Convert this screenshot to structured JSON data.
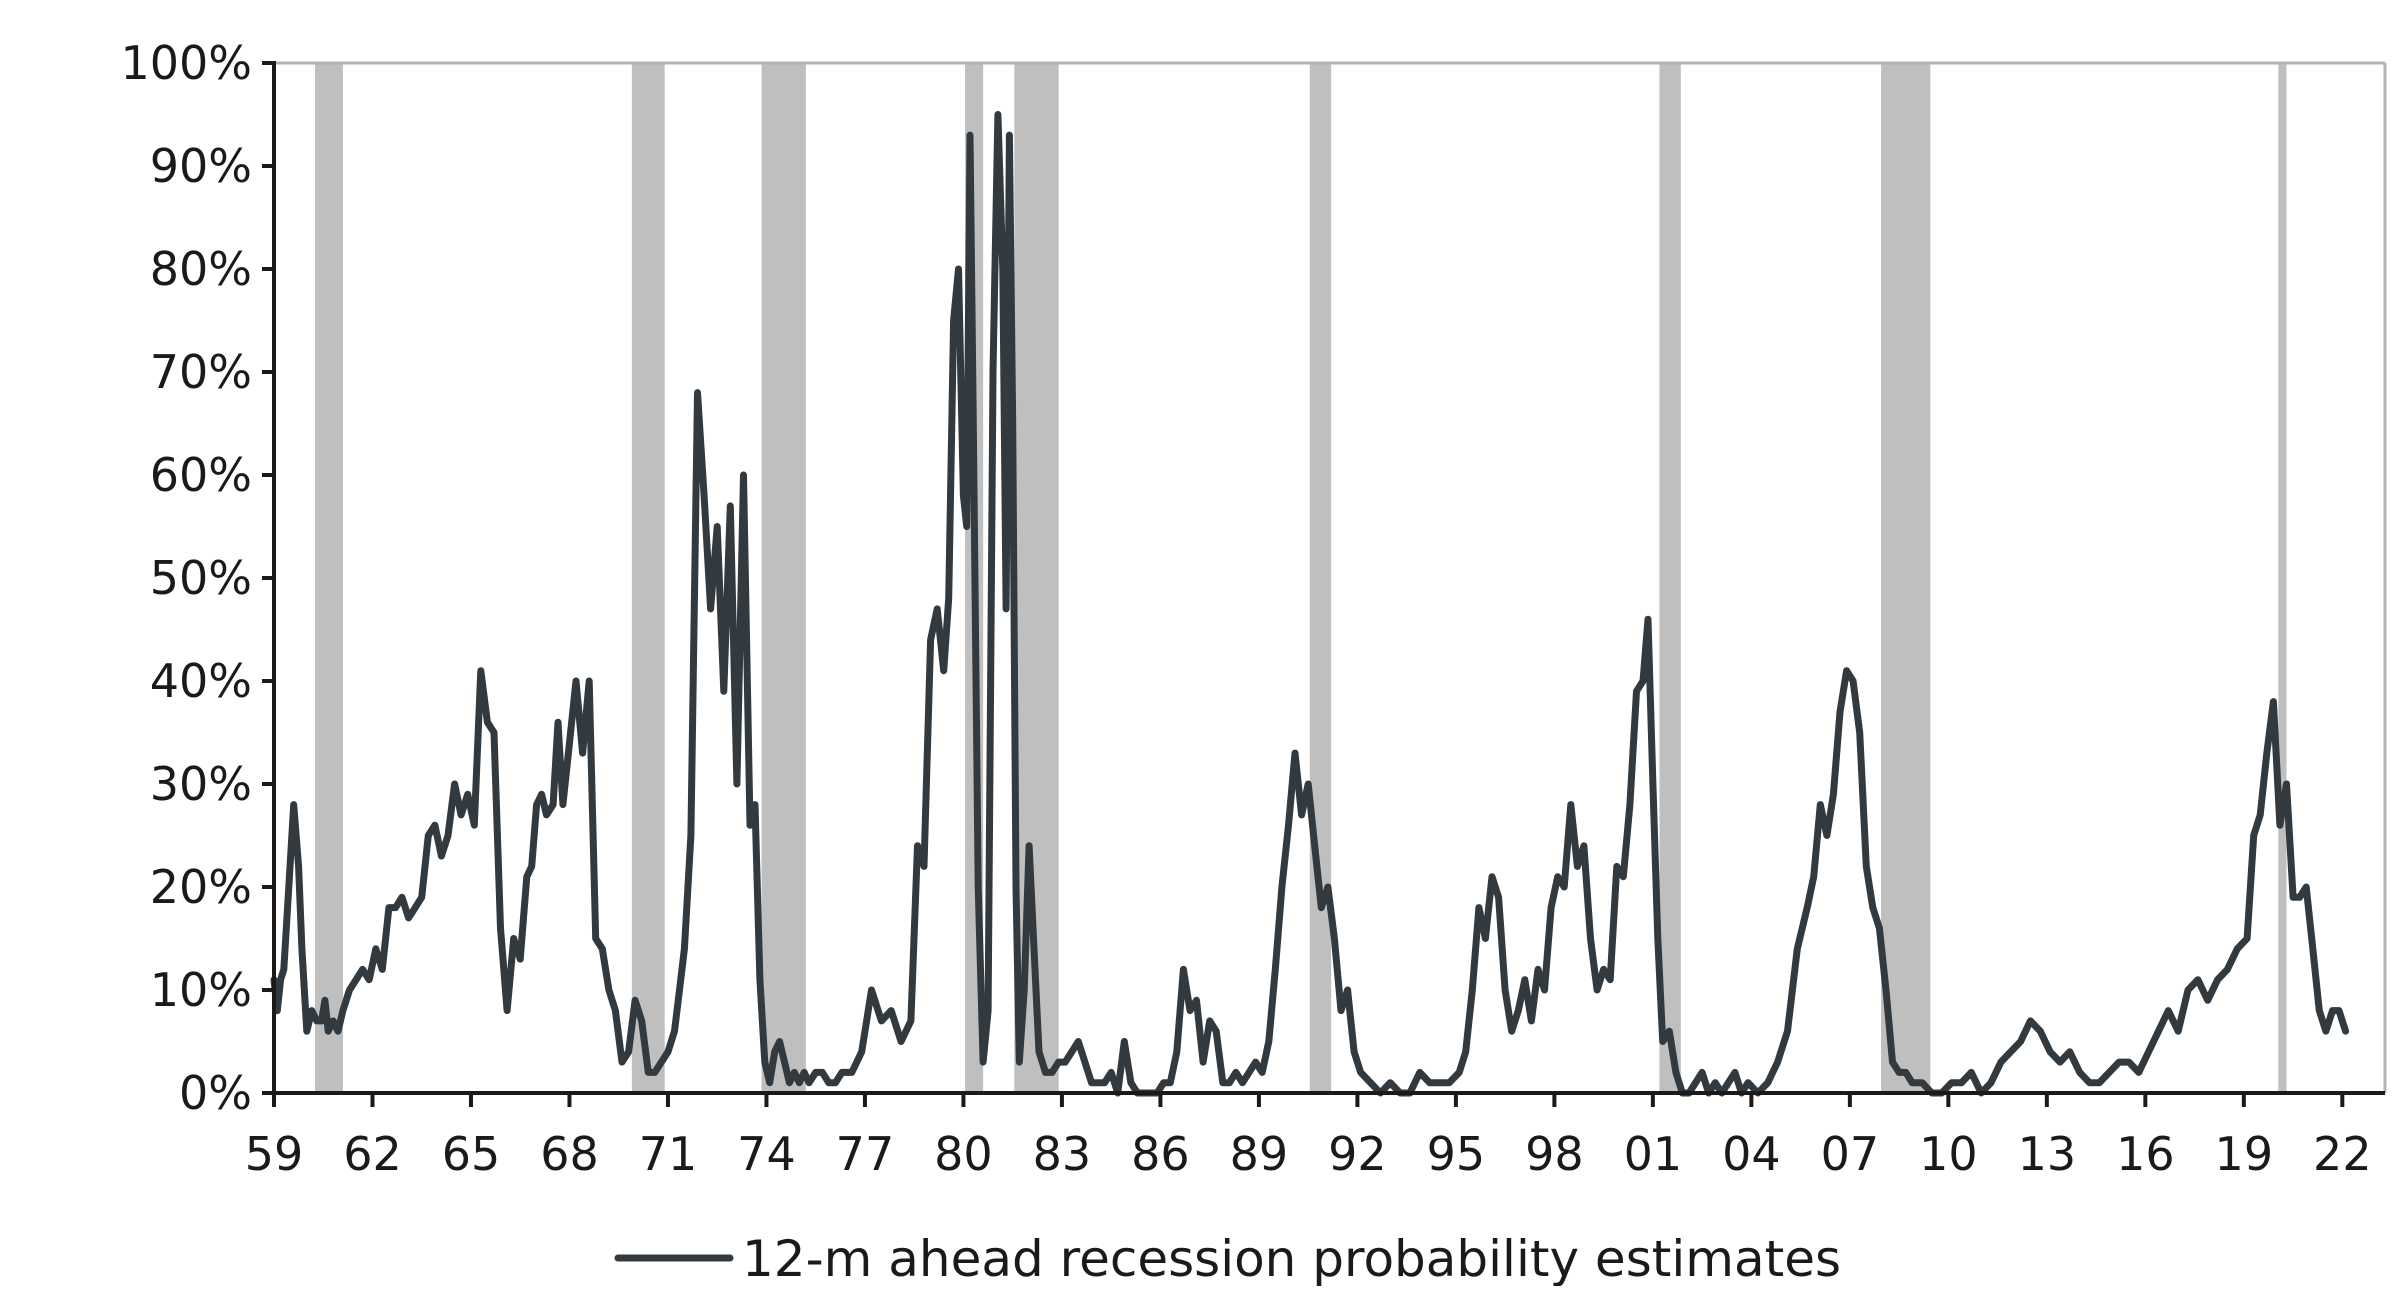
{
  "chart_data": {
    "type": "line",
    "title": "",
    "xlabel": "",
    "ylabel": "",
    "x_range": [
      1959,
      2023.3
    ],
    "ylim": [
      0,
      100
    ],
    "y_ticks": [
      {
        "value": 0,
        "label": "0%"
      },
      {
        "value": 10,
        "label": "10%"
      },
      {
        "value": 20,
        "label": "20%"
      },
      {
        "value": 30,
        "label": "30%"
      },
      {
        "value": 40,
        "label": "40%"
      },
      {
        "value": 50,
        "label": "50%"
      },
      {
        "value": 60,
        "label": "60%"
      },
      {
        "value": 70,
        "label": "70%"
      },
      {
        "value": 80,
        "label": "80%"
      },
      {
        "value": 90,
        "label": "90%"
      },
      {
        "value": 100,
        "label": "100%"
      }
    ],
    "x_ticks": [
      {
        "value": 1959,
        "label": "59"
      },
      {
        "value": 1962,
        "label": "62"
      },
      {
        "value": 1965,
        "label": "65"
      },
      {
        "value": 1968,
        "label": "68"
      },
      {
        "value": 1971,
        "label": "71"
      },
      {
        "value": 1974,
        "label": "74"
      },
      {
        "value": 1977,
        "label": "77"
      },
      {
        "value": 1980,
        "label": "80"
      },
      {
        "value": 1983,
        "label": "83"
      },
      {
        "value": 1986,
        "label": "86"
      },
      {
        "value": 1989,
        "label": "89"
      },
      {
        "value": 1992,
        "label": "92"
      },
      {
        "value": 1995,
        "label": "95"
      },
      {
        "value": 1998,
        "label": "98"
      },
      {
        "value": 2001,
        "label": "01"
      },
      {
        "value": 2004,
        "label": "04"
      },
      {
        "value": 2007,
        "label": "07"
      },
      {
        "value": 2010,
        "label": "10"
      },
      {
        "value": 2013,
        "label": "13"
      },
      {
        "value": 2016,
        "label": "16"
      },
      {
        "value": 2019,
        "label": "19"
      },
      {
        "value": 2022,
        "label": "22"
      }
    ],
    "recessions": [
      [
        1960.25,
        1961.1
      ],
      [
        1969.9,
        1970.9
      ],
      [
        1973.85,
        1975.2
      ],
      [
        1980.05,
        1980.6
      ],
      [
        1981.55,
        1982.9
      ],
      [
        1990.55,
        1991.2
      ],
      [
        2001.2,
        2001.85
      ],
      [
        2007.95,
        2009.45
      ],
      [
        2020.05,
        2020.3
      ]
    ],
    "grid": false,
    "legend_position": "bottom-center",
    "colors": {
      "line": "#323a3f",
      "recession": "#bfbfbf",
      "axis": "#1a1a1a",
      "frame": "#b3b3b3"
    },
    "series": [
      {
        "name": "12-m ahead recession probability estimates",
        "x": [
          1959.0,
          1959.1,
          1959.2,
          1959.3,
          1959.45,
          1959.6,
          1959.75,
          1959.85,
          1960.0,
          1960.15,
          1960.3,
          1960.45,
          1960.55,
          1960.65,
          1960.8,
          1960.95,
          1961.1,
          1961.3,
          1961.5,
          1961.7,
          1961.9,
          1962.1,
          1962.3,
          1962.5,
          1962.7,
          1962.9,
          1963.1,
          1963.3,
          1963.5,
          1963.7,
          1963.9,
          1964.1,
          1964.3,
          1964.5,
          1964.7,
          1964.9,
          1965.1,
          1965.3,
          1965.5,
          1965.7,
          1965.9,
          1966.1,
          1966.3,
          1966.5,
          1966.7,
          1966.85,
          1967.0,
          1967.15,
          1967.3,
          1967.5,
          1967.65,
          1967.8,
          1968.0,
          1968.2,
          1968.4,
          1968.6,
          1968.8,
          1969.0,
          1969.2,
          1969.4,
          1969.6,
          1969.8,
          1970.0,
          1970.2,
          1970.4,
          1970.6,
          1970.8,
          1971.0,
          1971.2,
          1971.35,
          1971.5,
          1971.7,
          1971.9,
          1972.1,
          1972.3,
          1972.5,
          1972.7,
          1972.9,
          1973.1,
          1973.3,
          1973.5,
          1973.65,
          1973.8,
          1973.95,
          1974.1,
          1974.25,
          1974.4,
          1974.55,
          1974.7,
          1974.85,
          1975.0,
          1975.15,
          1975.3,
          1975.5,
          1975.7,
          1975.9,
          1976.1,
          1976.3,
          1976.6,
          1976.9,
          1977.2,
          1977.5,
          1977.8,
          1978.1,
          1978.4,
          1978.6,
          1978.8,
          1979.0,
          1979.2,
          1979.4,
          1979.55,
          1979.7,
          1979.85,
          1980.0,
          1980.1,
          1980.2,
          1980.3,
          1980.45,
          1980.6,
          1980.75,
          1980.9,
          1981.05,
          1981.2,
          1981.3,
          1981.4,
          1981.5,
          1981.6,
          1981.7,
          1981.85,
          1982.0,
          1982.15,
          1982.3,
          1982.5,
          1982.7,
          1982.9,
          1983.1,
          1983.3,
          1983.5,
          1983.7,
          1983.9,
          1984.1,
          1984.3,
          1984.5,
          1984.7,
          1984.9,
          1985.1,
          1985.3,
          1985.5,
          1985.7,
          1985.9,
          1986.1,
          1986.3,
          1986.5,
          1986.7,
          1986.9,
          1987.1,
          1987.3,
          1987.5,
          1987.7,
          1987.9,
          1988.1,
          1988.3,
          1988.5,
          1988.7,
          1988.9,
          1989.1,
          1989.3,
          1989.5,
          1989.7,
          1989.9,
          1990.1,
          1990.3,
          1990.5,
          1990.7,
          1990.9,
          1991.1,
          1991.3,
          1991.5,
          1991.7,
          1991.9,
          1992.1,
          1992.4,
          1992.7,
          1993.0,
          1993.3,
          1993.6,
          1993.9,
          1994.2,
          1994.5,
          1994.8,
          1995.1,
          1995.3,
          1995.5,
          1995.7,
          1995.9,
          1996.1,
          1996.3,
          1996.5,
          1996.7,
          1996.9,
          1997.1,
          1997.3,
          1997.5,
          1997.7,
          1997.9,
          1998.1,
          1998.3,
          1998.5,
          1998.7,
          1998.9,
          1999.1,
          1999.3,
          1999.5,
          1999.7,
          1999.9,
          2000.1,
          2000.3,
          2000.5,
          2000.7,
          2000.85,
          2001.0,
          2001.15,
          2001.3,
          2001.5,
          2001.7,
          2001.9,
          2002.1,
          2002.3,
          2002.5,
          2002.7,
          2002.9,
          2003.1,
          2003.3,
          2003.5,
          2003.7,
          2003.9,
          2004.2,
          2004.5,
          2004.8,
          2005.1,
          2005.4,
          2005.7,
          2005.9,
          2006.1,
          2006.3,
          2006.5,
          2006.7,
          2006.9,
          2007.1,
          2007.3,
          2007.5,
          2007.7,
          2007.9,
          2008.1,
          2008.3,
          2008.5,
          2008.7,
          2008.9,
          2009.2,
          2009.5,
          2009.8,
          2010.1,
          2010.4,
          2010.7,
          2011.0,
          2011.3,
          2011.6,
          2011.9,
          2012.2,
          2012.5,
          2012.8,
          2013.1,
          2013.4,
          2013.7,
          2014.0,
          2014.3,
          2014.6,
          2014.9,
          2015.2,
          2015.5,
          2015.8,
          2016.1,
          2016.4,
          2016.7,
          2017.0,
          2017.3,
          2017.6,
          2017.9,
          2018.2,
          2018.5,
          2018.8,
          2019.1,
          2019.3,
          2019.5,
          2019.7,
          2019.9,
          2020.1,
          2020.3,
          2020.5,
          2020.7,
          2020.9,
          2021.1,
          2021.3,
          2021.5,
          2021.7,
          2021.9,
          2022.1
        ],
        "y": [
          11,
          8,
          11,
          12,
          20,
          28,
          22,
          14,
          6,
          8,
          7,
          7,
          9,
          6,
          7,
          6,
          8,
          10,
          11,
          12,
          11,
          14,
          12,
          18,
          18,
          19,
          17,
          18,
          19,
          25,
          26,
          23,
          25,
          30,
          27,
          29,
          26,
          41,
          36,
          35,
          16,
          8,
          15,
          13,
          21,
          22,
          28,
          29,
          27,
          28,
          36,
          28,
          34,
          40,
          33,
          40,
          15,
          14,
          10,
          8,
          3,
          4,
          9,
          7,
          2,
          2,
          3,
          4,
          6,
          10,
          14,
          25,
          68,
          58,
          47,
          55,
          39,
          57,
          30,
          60,
          26,
          28,
          11,
          3,
          1,
          4,
          5,
          3,
          1,
          2,
          1,
          2,
          1,
          2,
          2,
          1,
          1,
          2,
          2,
          4,
          10,
          7,
          8,
          5,
          7,
          24,
          22,
          44,
          47,
          41,
          48,
          75,
          80,
          58,
          55,
          93,
          65,
          20,
          3,
          8,
          70,
          95,
          80,
          47,
          93,
          65,
          20,
          3,
          10,
          24,
          14,
          4,
          2,
          2,
          3,
          3,
          4,
          5,
          3,
          1,
          1,
          1,
          2,
          0,
          5,
          1,
          0,
          0,
          0,
          0,
          1,
          1,
          4,
          12,
          8,
          9,
          3,
          7,
          6,
          1,
          1,
          2,
          1,
          2,
          3,
          2,
          5,
          12,
          20,
          26,
          33,
          27,
          30,
          24,
          18,
          20,
          15,
          8,
          10,
          4,
          2,
          1,
          0,
          1,
          0,
          0,
          2,
          1,
          1,
          1,
          2,
          4,
          10,
          18,
          15,
          21,
          19,
          10,
          6,
          8,
          11,
          7,
          12,
          10,
          18,
          21,
          20,
          28,
          22,
          24,
          15,
          10,
          12,
          11,
          22,
          21,
          28,
          39,
          40,
          46,
          30,
          15,
          5,
          6,
          2,
          0,
          0,
          1,
          2,
          0,
          1,
          0,
          1,
          2,
          0,
          1,
          0,
          1,
          3,
          6,
          14,
          18,
          21,
          28,
          25,
          29,
          37,
          41,
          40,
          35,
          22,
          18,
          16,
          10,
          3,
          2,
          2,
          1,
          1,
          0,
          0,
          1,
          1,
          2,
          0,
          1,
          3,
          4,
          5,
          7,
          6,
          4,
          3,
          4,
          2,
          1,
          1,
          2,
          3,
          3,
          2,
          4,
          6,
          8,
          6,
          10,
          11,
          9,
          11,
          12,
          14,
          15,
          25,
          27,
          33,
          38,
          26,
          30,
          19,
          19,
          20,
          14,
          8,
          6,
          8,
          8,
          6
        ]
      }
    ]
  },
  "legend": {
    "label": "12-m ahead recession probability estimates"
  }
}
